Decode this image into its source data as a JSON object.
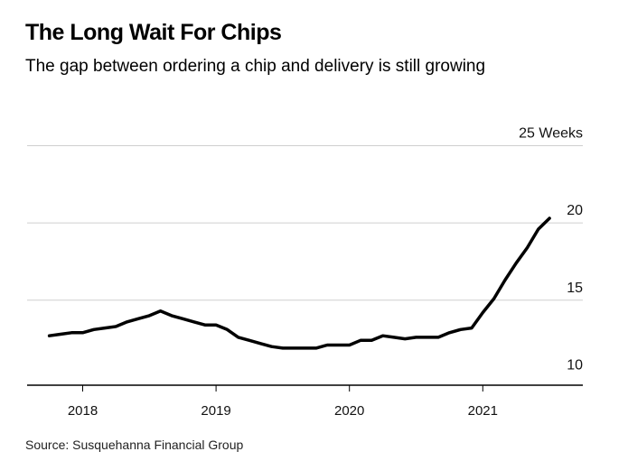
{
  "title": "The Long Wait For Chips",
  "subtitle": "The gap between ordering a chip and delivery is still growing",
  "source": "Source: Susquehanna Financial Group",
  "chart_data": {
    "type": "line",
    "title": "The Long Wait For Chips",
    "subtitle": "The gap between ordering a chip and delivery is still growing",
    "ylabel": "",
    "xlabel": "",
    "ylim": [
      9.5,
      25
    ],
    "xlim": [
      "2017-08",
      "2021-10"
    ],
    "y_ticks": [
      {
        "value": 10,
        "label": "10"
      },
      {
        "value": 15,
        "label": "15"
      },
      {
        "value": 20,
        "label": "20"
      },
      {
        "value": 25,
        "label": "25 Weeks"
      }
    ],
    "x_ticks": [
      {
        "value": "2018-01",
        "label": "2018"
      },
      {
        "value": "2019-01",
        "label": "2019"
      },
      {
        "value": "2020-01",
        "label": "2020"
      },
      {
        "value": "2021-01",
        "label": "2021"
      }
    ],
    "grid": true,
    "line_color": "#000000",
    "series": [
      {
        "x": [
          "2017-10",
          "2017-11",
          "2017-12",
          "2018-01",
          "2018-02",
          "2018-03",
          "2018-04",
          "2018-05",
          "2018-06",
          "2018-07",
          "2018-08",
          "2018-09",
          "2018-10",
          "2018-11",
          "2018-12",
          "2019-01",
          "2019-02",
          "2019-03",
          "2019-04",
          "2019-05",
          "2019-06",
          "2019-07",
          "2019-08",
          "2019-09",
          "2019-10",
          "2019-11",
          "2019-12",
          "2020-01",
          "2020-02",
          "2020-03",
          "2020-04",
          "2020-05",
          "2020-06",
          "2020-07",
          "2020-08",
          "2020-09",
          "2020-10",
          "2020-11",
          "2020-12",
          "2021-01",
          "2021-02",
          "2021-03",
          "2021-04",
          "2021-05",
          "2021-06",
          "2021-07"
        ],
        "values": [
          12.7,
          12.8,
          12.9,
          12.9,
          13.1,
          13.2,
          13.3,
          13.6,
          13.8,
          14.0,
          14.3,
          14.0,
          13.8,
          13.6,
          13.4,
          13.4,
          13.1,
          12.6,
          12.4,
          12.2,
          12.0,
          11.9,
          11.9,
          11.9,
          11.9,
          12.1,
          12.1,
          12.1,
          12.4,
          12.4,
          12.7,
          12.6,
          12.5,
          12.6,
          12.6,
          12.6,
          12.9,
          13.1,
          13.2,
          14.2,
          15.1,
          16.3,
          17.4,
          18.4,
          19.6,
          20.3
        ]
      }
    ]
  }
}
